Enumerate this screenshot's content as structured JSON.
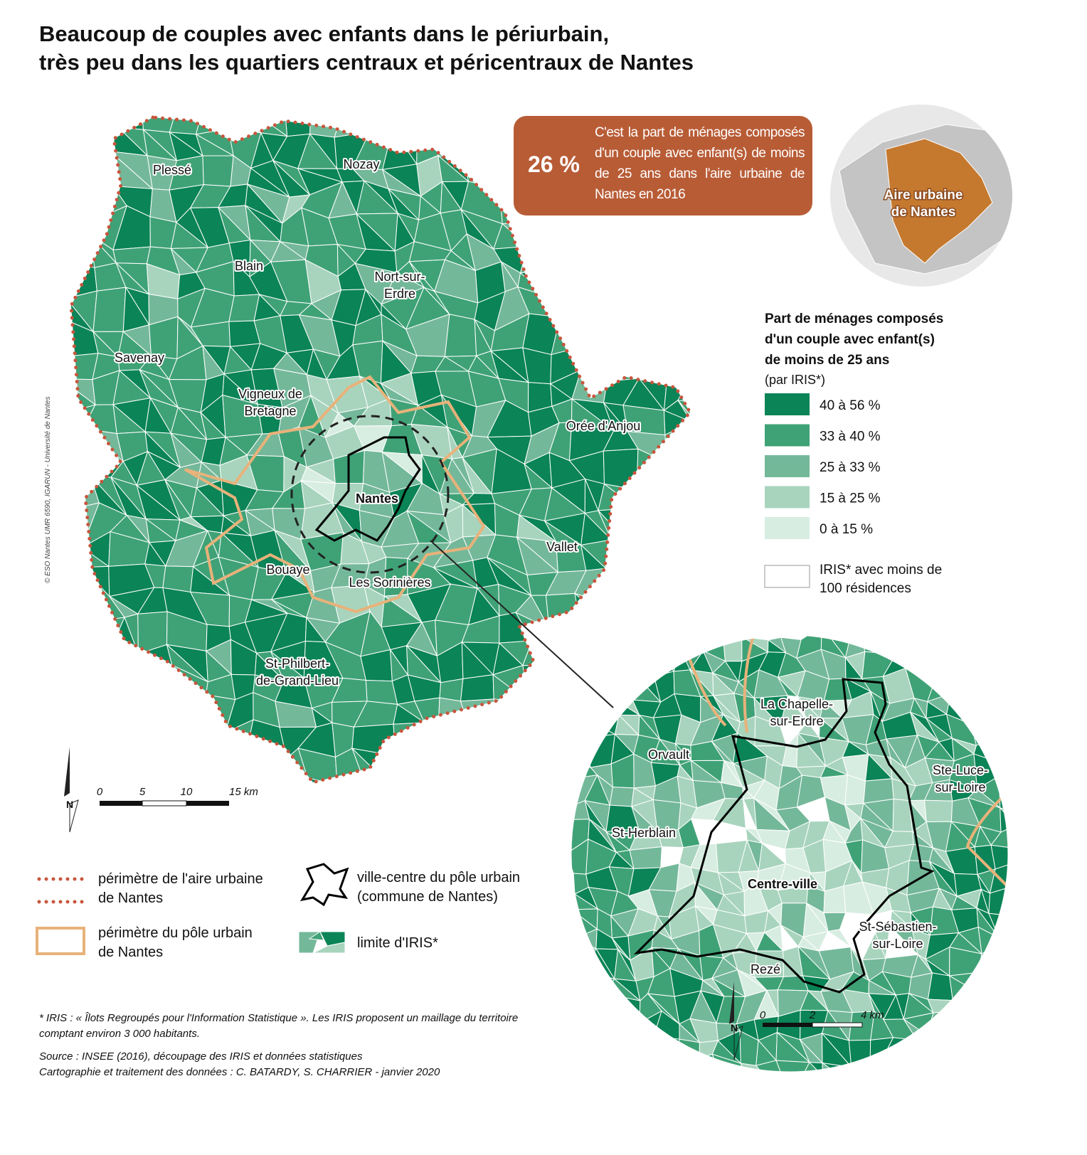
{
  "title": [
    "Beaucoup de couples avec enfants dans le périurbain,",
    "très peu dans les quartiers centraux et péricentraux de Nantes"
  ],
  "callout": {
    "value": "26 %",
    "text": "C'est la part de ménages composés d'un couple avec enfant(s) de moins de 25 ans dans l'aire urbaine de Nantes en 2016"
  },
  "inset_label": [
    "Aire urbaine",
    "de Nantes"
  ],
  "map_labels": [
    [
      "Plessé"
    ],
    [
      "Nozay"
    ],
    [
      "Blain"
    ],
    [
      "Nort-sur-",
      "Erdre"
    ],
    [
      "Savenay"
    ],
    [
      "Vigneux de",
      "Bretagne"
    ],
    [
      "Orée d'Anjou"
    ],
    [
      "Nantes"
    ],
    [
      "Vallet"
    ],
    [
      "Bouaye"
    ],
    [
      "Les Sorinières"
    ],
    [
      "St-Philbert-",
      "de-Grand-Lieu"
    ]
  ],
  "zoom_labels": [
    [
      "La Chapelle-",
      "sur-Erdre"
    ],
    [
      "Orvault"
    ],
    [
      "Ste-Luce-",
      "sur-Loire"
    ],
    [
      "St-Herblain"
    ],
    [
      "Centre-ville"
    ],
    [
      "St-Sébastien-",
      "sur-Loire"
    ],
    [
      "Rezé"
    ]
  ],
  "legend": {
    "title": [
      "Part de ménages composés",
      "d'un couple avec enfant(s)",
      "de moins de 25 ans"
    ],
    "subtitle": "(par IRIS*)",
    "classes": [
      {
        "label": "40 à 56 %",
        "color": "#0b8457"
      },
      {
        "label": "33 à 40 %",
        "color": "#3fa276"
      },
      {
        "label": "25 à 33 %",
        "color": "#74b89a"
      },
      {
        "label": "15 à 25 %",
        "color": "#a8d4bd"
      },
      {
        "label": "0 à 15 %",
        "color": "#d8ede2"
      }
    ],
    "empty": {
      "label": [
        "IRIS* avec moins de",
        "100 résidences"
      ],
      "color": "#ffffff"
    }
  },
  "north": "N",
  "scale_main": [
    "0",
    "5",
    "10",
    "15 km"
  ],
  "scale_zoom": [
    "0",
    "2",
    "4 km"
  ],
  "symbols": [
    [
      "périmètre de l'aire urbaine",
      "de Nantes"
    ],
    [
      "périmètre du pôle urbain",
      "de Nantes"
    ],
    [
      "ville-centre du pôle urbain",
      "(commune de Nantes)"
    ],
    [
      "limite d'IRIS*"
    ]
  ],
  "footnote": [
    "* IRIS : « Îlots Regroupés pour l'Information Statistique ». Les IRIS proposent un maillage du territoire",
    "comptant environ 3 000 habitants."
  ],
  "source": [
    "Source : INSEE (2016), découpage des IRIS et données statistiques",
    "Cartographie et traitement des données  : C. BATARDY, S. CHARRIER - janvier 2020"
  ],
  "copyright": "© ESO Nantes UMR 6590, IGARUN - Université de Nantes"
}
